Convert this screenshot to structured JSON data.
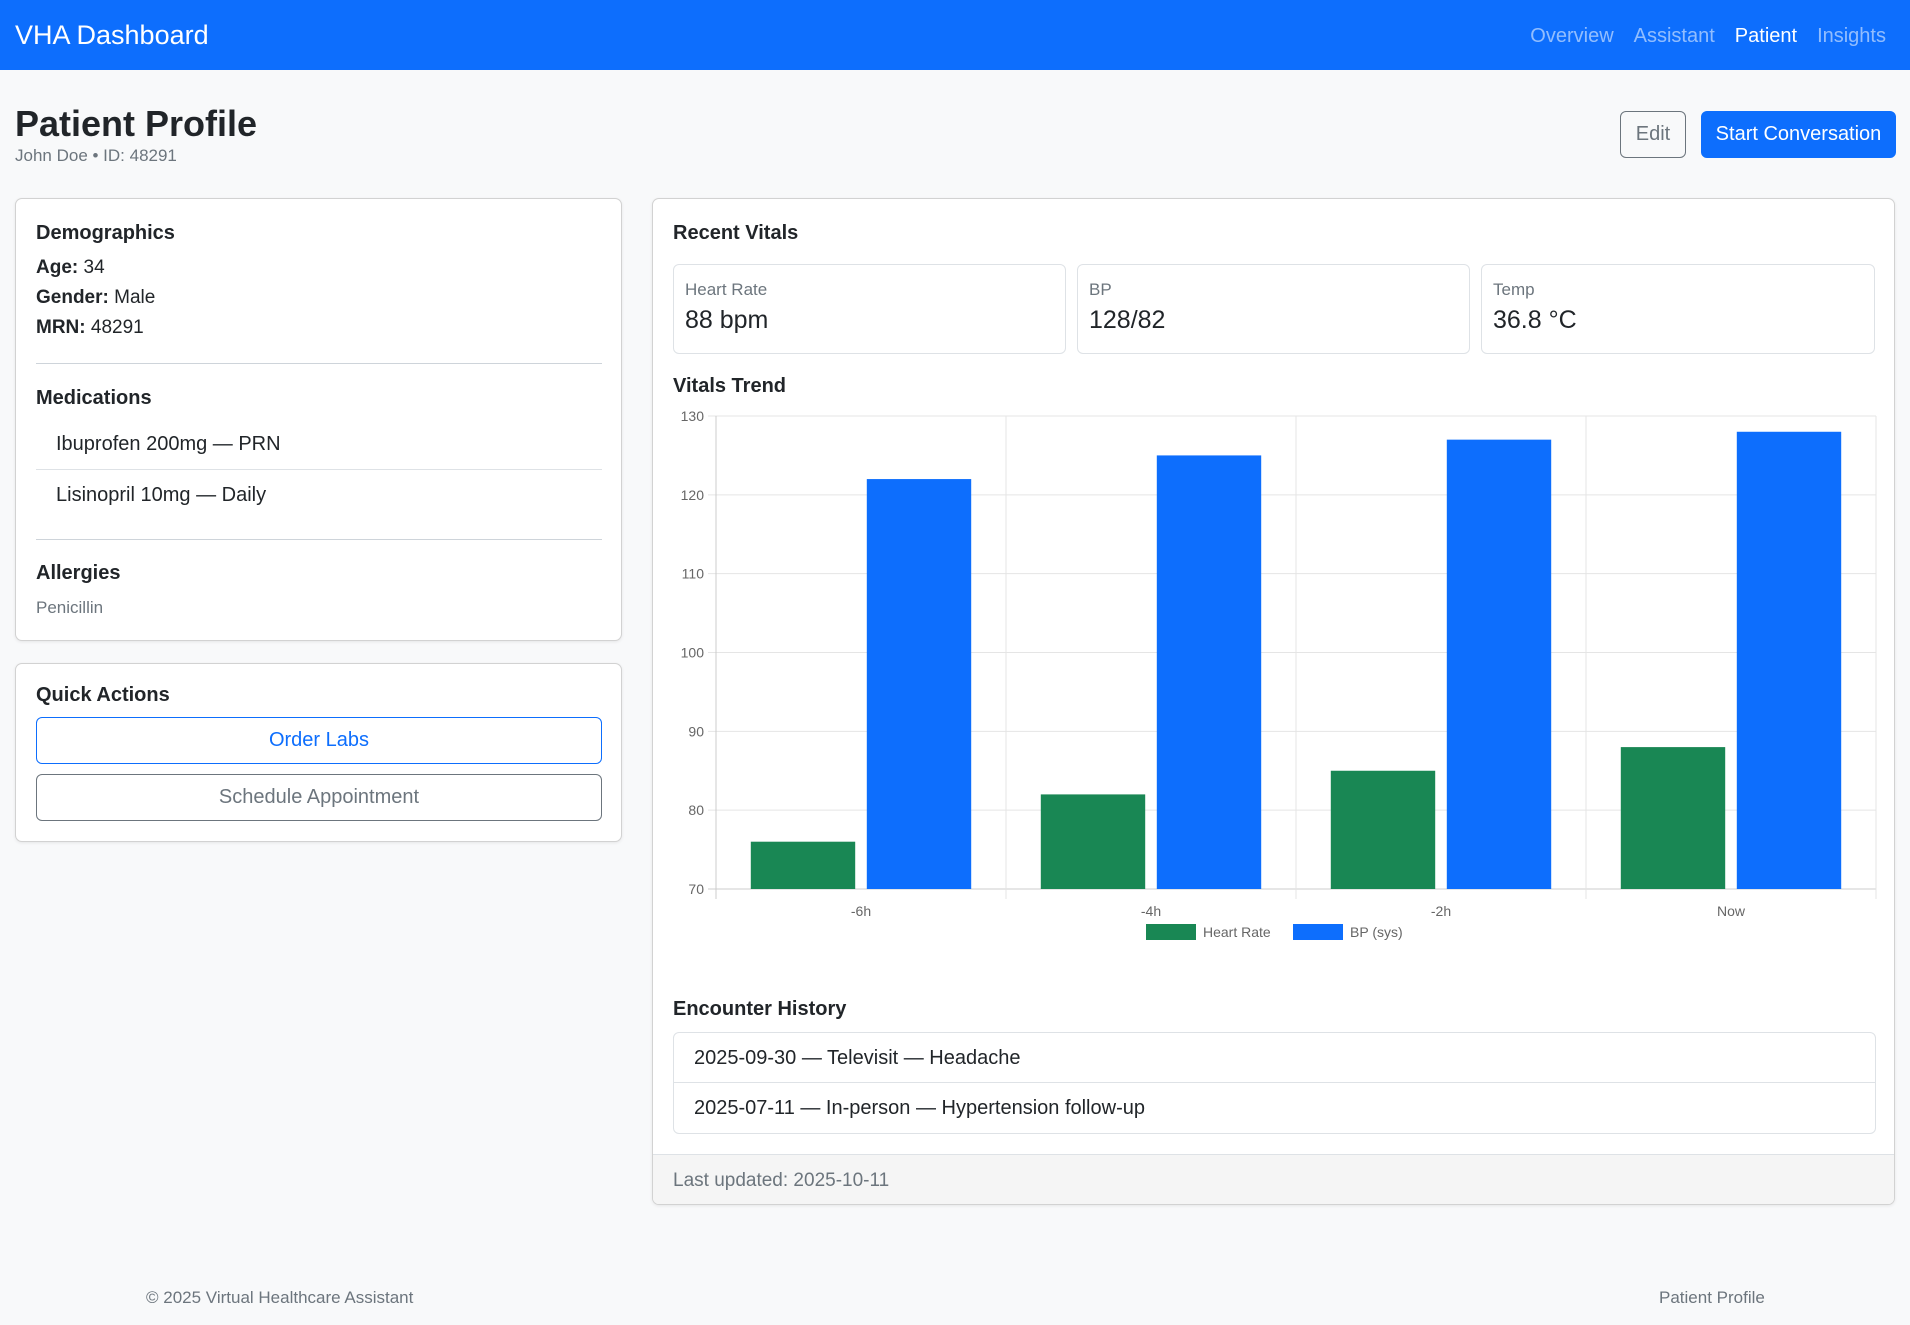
{
  "navbar": {
    "brand": "VHA Dashboard",
    "links": [
      {
        "label": "Overview",
        "active": false
      },
      {
        "label": "Assistant",
        "active": false
      },
      {
        "label": "Patient",
        "active": true
      },
      {
        "label": "Insights",
        "active": false
      }
    ]
  },
  "header": {
    "title": "Patient Profile",
    "subtitle": "John Doe • ID: 48291",
    "edit_label": "Edit",
    "start_label": "Start Conversation"
  },
  "demographics": {
    "title": "Demographics",
    "age_label": "Age:",
    "age": "34",
    "gender_label": "Gender:",
    "gender": "Male",
    "mrn_label": "MRN:",
    "mrn": "48291"
  },
  "medications": {
    "title": "Medications",
    "items": [
      "Ibuprofen 200mg — PRN",
      "Lisinopril 10mg — Daily"
    ]
  },
  "allergies": {
    "title": "Allergies",
    "text": "Penicillin"
  },
  "quick_actions": {
    "title": "Quick Actions",
    "order_labs": "Order Labs",
    "schedule": "Schedule Appointment"
  },
  "vitals": {
    "title": "Recent Vitals",
    "items": [
      {
        "label": "Heart Rate",
        "value": "88 bpm"
      },
      {
        "label": "BP",
        "value": "128/82"
      },
      {
        "label": "Temp",
        "value": "36.8 °C"
      }
    ]
  },
  "trend_title": "Vitals Trend",
  "chart_data": {
    "type": "bar",
    "categories": [
      "-6h",
      "-4h",
      "-2h",
      "Now"
    ],
    "series": [
      {
        "name": "Heart Rate",
        "values": [
          76,
          82,
          85,
          88
        ],
        "color": "#198754"
      },
      {
        "name": "BP (sys)",
        "values": [
          122,
          125,
          127,
          128
        ],
        "color": "#0d6efd"
      }
    ],
    "ylim": [
      70,
      130
    ],
    "yticks": [
      70,
      80,
      90,
      100,
      110,
      120,
      130
    ],
    "grid": true,
    "legend": "bottom"
  },
  "encounters": {
    "title": "Encounter History",
    "items": [
      "2025-09-30 — Televisit — Headache",
      "2025-07-11 — In-person — Hypertension follow-up"
    ]
  },
  "card_footer": "Last updated: 2025-10-11",
  "footer": {
    "copyright": "© 2025 Virtual Healthcare Assistant",
    "page": "Patient Profile"
  },
  "colors": {
    "primary": "#0d6efd",
    "success": "#198754",
    "muted": "#6c757d"
  }
}
